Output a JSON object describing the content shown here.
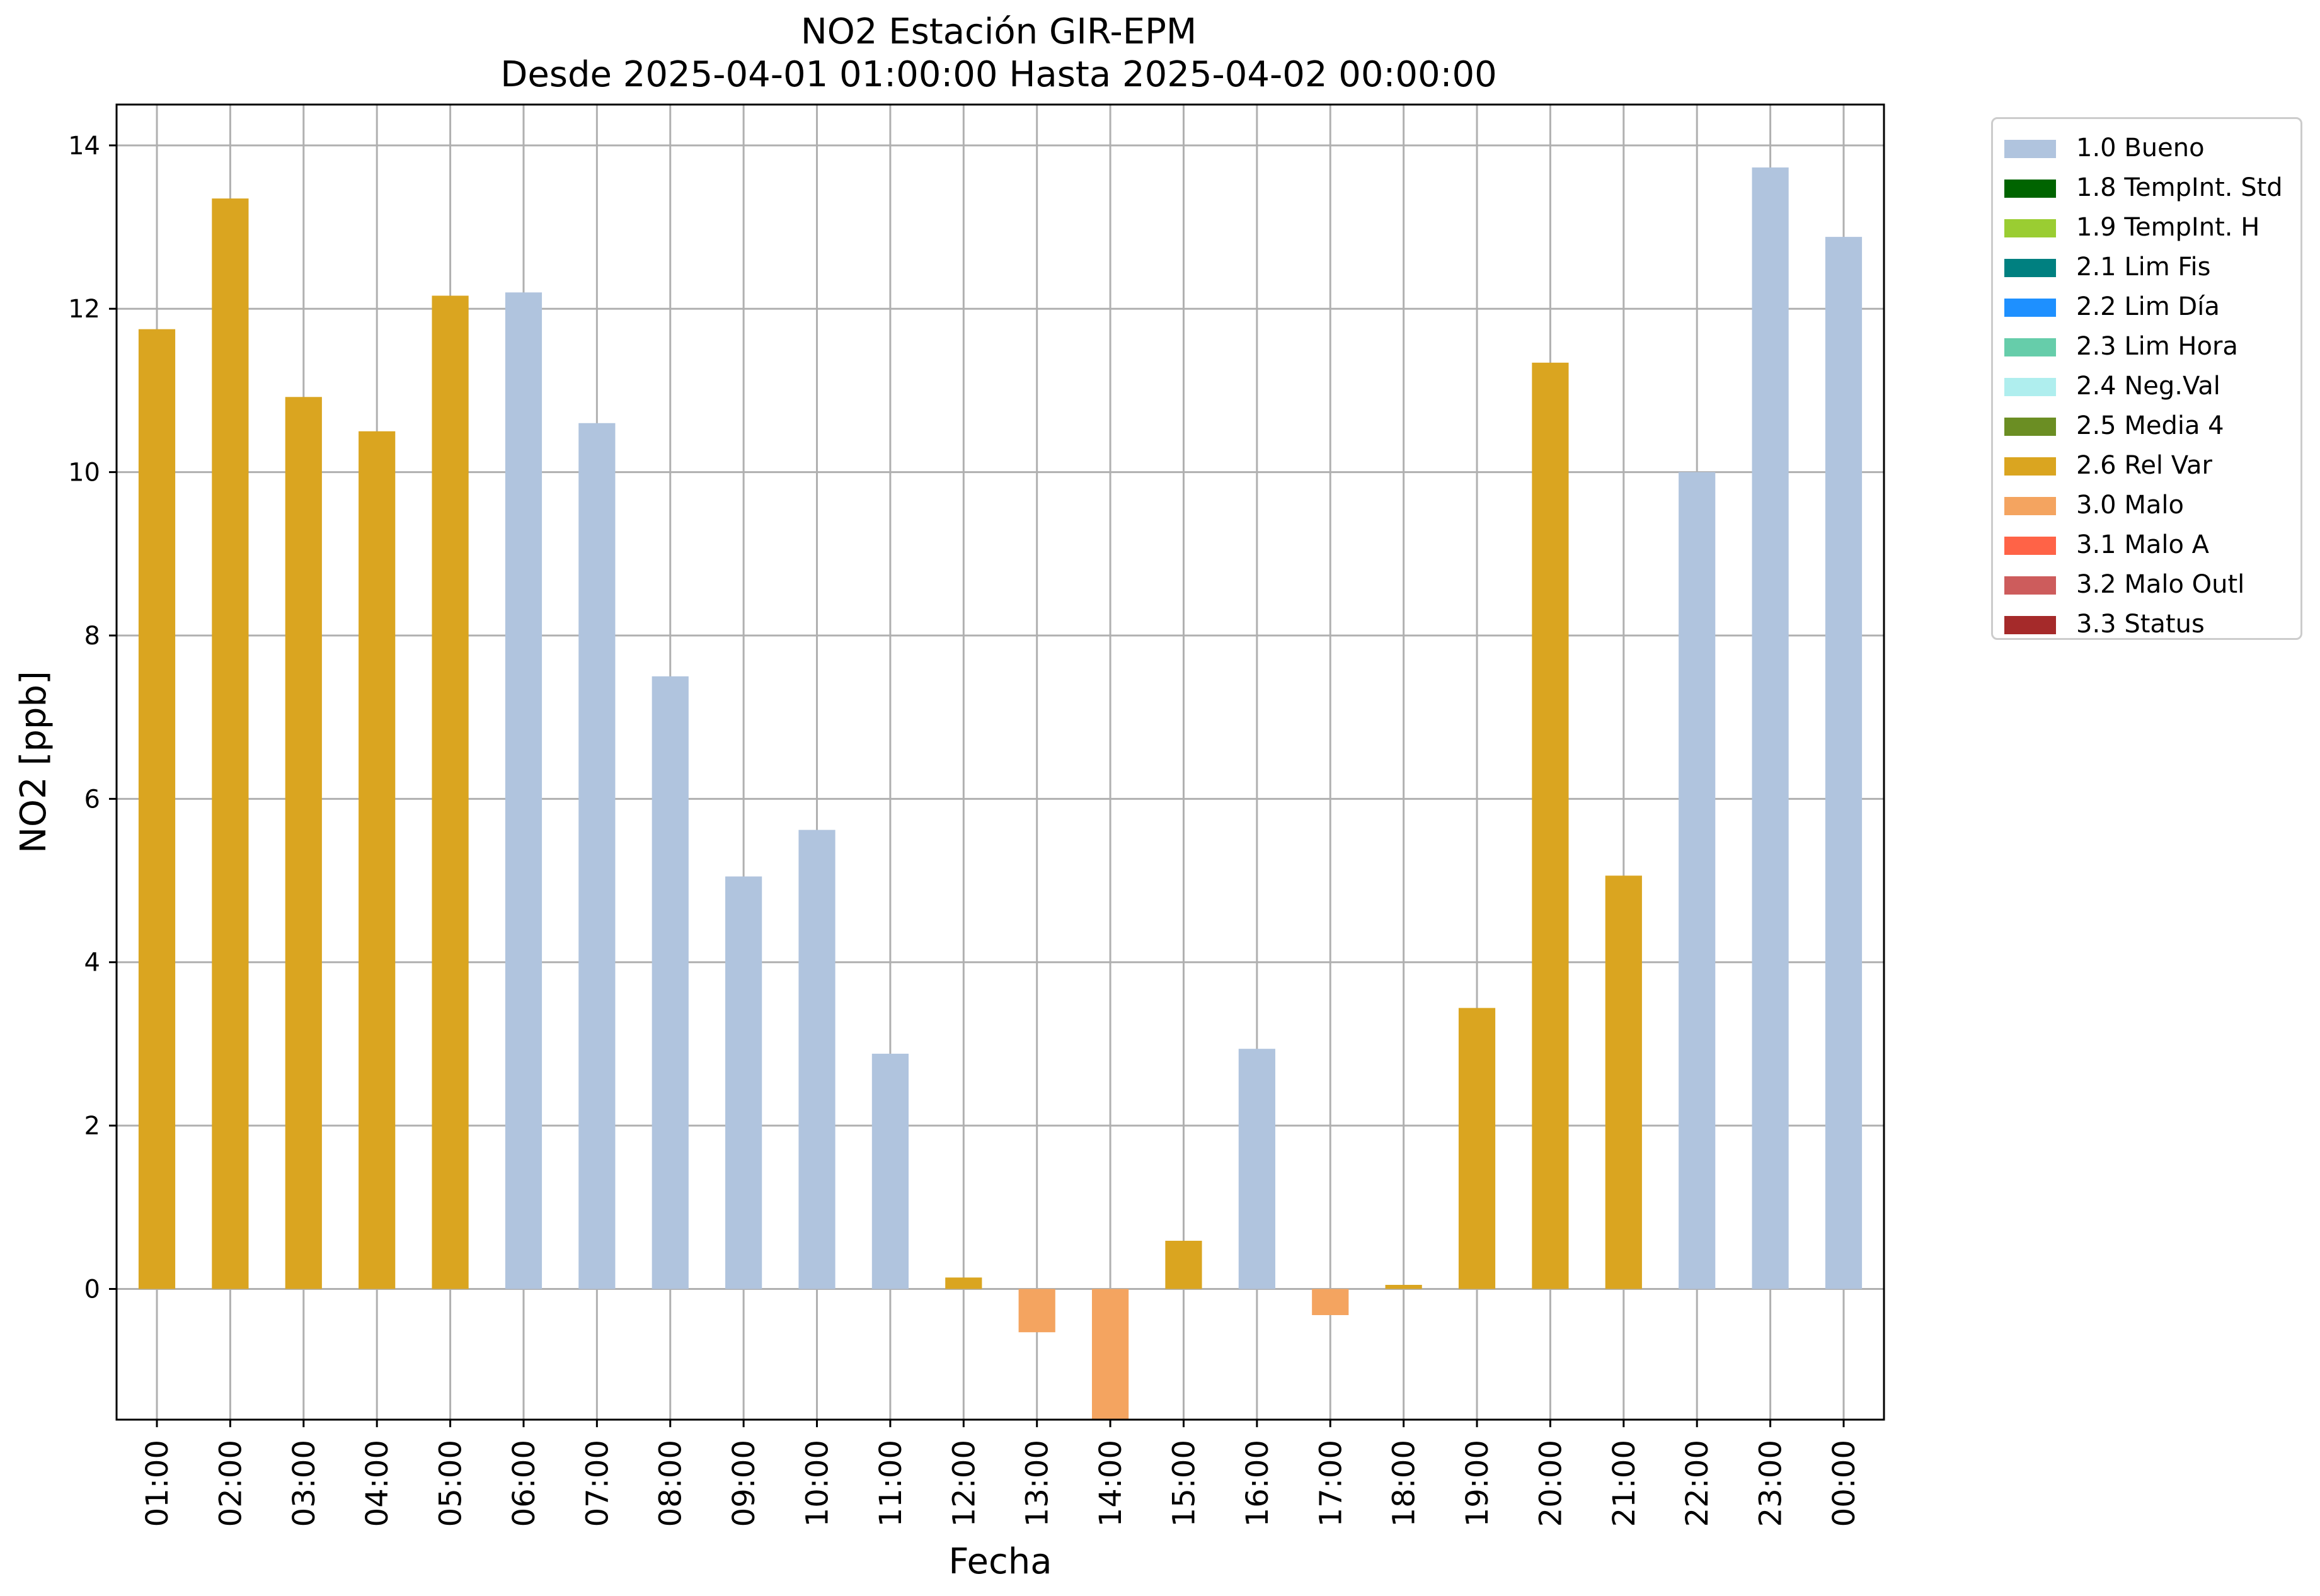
{
  "chart_data": {
    "type": "bar",
    "title": "NO2 Estación GIR-EPM",
    "subtitle": "Desde 2025-04-01 01:00:00 Hasta 2025-04-02 00:00:00",
    "xlabel": "Fecha",
    "ylabel": "NO2 [ppb]",
    "ylim": [
      -1.6,
      14.5
    ],
    "yticks": [
      0,
      2,
      4,
      6,
      8,
      10,
      12,
      14
    ],
    "grid": true,
    "legend_position": "outside-top-right",
    "categories": [
      "01:00",
      "02:00",
      "03:00",
      "04:00",
      "05:00",
      "06:00",
      "07:00",
      "08:00",
      "09:00",
      "10:00",
      "11:00",
      "12:00",
      "13:00",
      "14:00",
      "15:00",
      "16:00",
      "17:00",
      "18:00",
      "19:00",
      "20:00",
      "21:00",
      "22:00",
      "23:00",
      "00:00"
    ],
    "values": [
      11.75,
      13.35,
      10.92,
      10.5,
      12.16,
      12.2,
      10.6,
      7.5,
      5.05,
      5.62,
      2.88,
      0.14,
      -0.53,
      -1.6,
      0.59,
      2.94,
      -0.32,
      0.05,
      3.44,
      11.34,
      5.06,
      10.0,
      13.73,
      12.88
    ],
    "flags": [
      "2.6 Rel Var",
      "2.6 Rel Var",
      "2.6 Rel Var",
      "2.6 Rel Var",
      "2.6 Rel Var",
      "1.0 Bueno",
      "1.0 Bueno",
      "1.0 Bueno",
      "1.0 Bueno",
      "1.0 Bueno",
      "1.0 Bueno",
      "2.6 Rel Var",
      "3.0 Malo",
      "3.0 Malo",
      "2.6 Rel Var",
      "1.0 Bueno",
      "3.0 Malo",
      "2.6 Rel Var",
      "2.6 Rel Var",
      "2.6 Rel Var",
      "2.6 Rel Var",
      "1.0 Bueno",
      "1.0 Bueno",
      "1.0 Bueno"
    ],
    "legend": [
      {
        "label": "1.0 Bueno",
        "color": "#b0c4de"
      },
      {
        "label": "1.8 TempInt. Std",
        "color": "#006400"
      },
      {
        "label": "1.9 TempInt. H",
        "color": "#9acd32"
      },
      {
        "label": "2.1 Lim Fis",
        "color": "#008080"
      },
      {
        "label": "2.2 Lim Día",
        "color": "#1e90ff"
      },
      {
        "label": "2.3 Lim Hora",
        "color": "#66cdaa"
      },
      {
        "label": "2.4 Neg.Val",
        "color": "#afeeee"
      },
      {
        "label": "2.5 Media 4",
        "color": "#6b8e23"
      },
      {
        "label": "2.6 Rel Var",
        "color": "#daa520"
      },
      {
        "label": "3.0 Malo",
        "color": "#f4a460"
      },
      {
        "label": "3.1 Malo A",
        "color": "#ff6347"
      },
      {
        "label": "3.2 Malo Outl",
        "color": "#cd5c5c"
      },
      {
        "label": "3.3 Status",
        "color": "#a52a2a"
      }
    ]
  }
}
